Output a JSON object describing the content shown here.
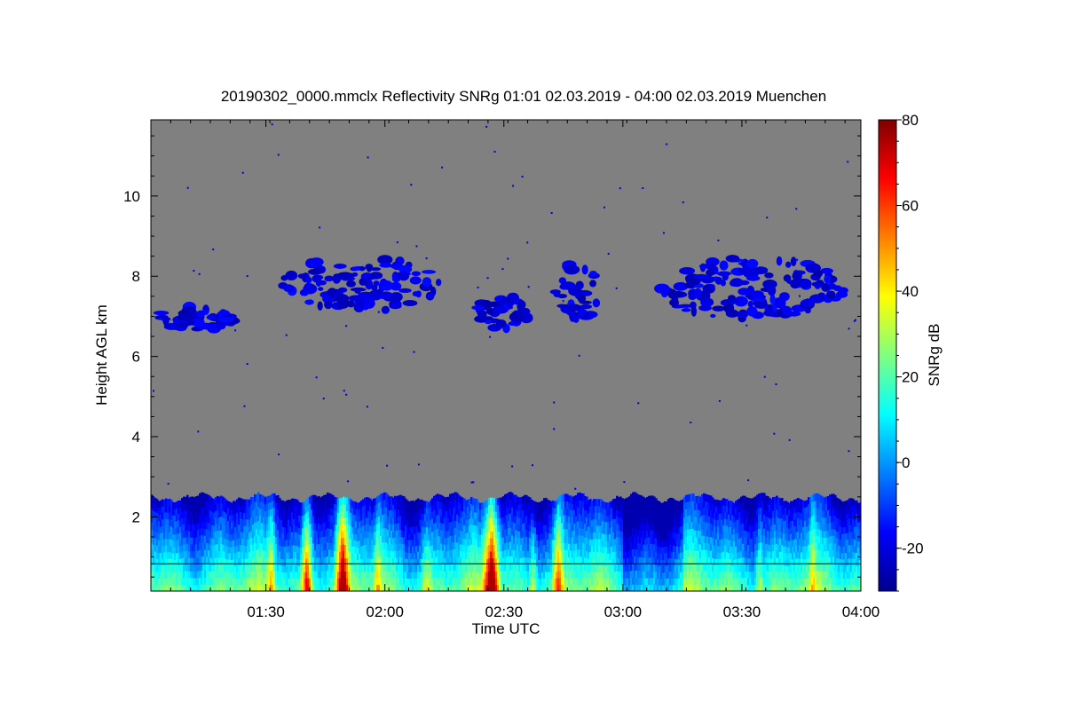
{
  "chart_data": {
    "type": "heatmap",
    "title": "20190302_0000.mmclx Reflectivity SNRg   01:01 02.03.2019 - 04:00 02.03.2019 Muenchen",
    "xlabel": "Time UTC",
    "ylabel": "Height AGL km",
    "colorbar_label": "SNRg dB",
    "x_range": [
      "01:01",
      "04:00"
    ],
    "x_ticks": [
      "01:30",
      "02:00",
      "02:30",
      "03:00",
      "03:30",
      "04:00"
    ],
    "y_range": [
      0.15,
      11.9
    ],
    "y_ticks": [
      2,
      4,
      6,
      8,
      10
    ],
    "colorbar_range": [
      -30,
      80
    ],
    "colorbar_ticks": [
      -20,
      0,
      20,
      40,
      60,
      80
    ],
    "colormap": "jet",
    "background_color": "#808080",
    "reference_line_height_km": 0.83,
    "regions": [
      {
        "name": "boundary layer echo",
        "time_from": "01:01",
        "time_to": "04:00",
        "height_from_km": 0.15,
        "height_to_km": 2.6,
        "snr_db_range": [
          -25,
          75
        ]
      },
      {
        "name": "upper cloud 1",
        "time_from": "01:01",
        "time_to": "01:23",
        "height_from_km": 6.6,
        "height_to_km": 7.3,
        "snr_db_range": [
          -25,
          -15
        ]
      },
      {
        "name": "upper cloud 2",
        "time_from": "01:31",
        "time_to": "02:16",
        "height_from_km": 7.0,
        "height_to_km": 8.6,
        "snr_db_range": [
          -25,
          -15
        ]
      },
      {
        "name": "upper cloud 3",
        "time_from": "02:21",
        "time_to": "02:37",
        "height_from_km": 6.6,
        "height_to_km": 7.6,
        "snr_db_range": [
          -25,
          -15
        ]
      },
      {
        "name": "upper cloud 4",
        "time_from": "02:42",
        "time_to": "02:55",
        "height_from_km": 6.7,
        "height_to_km": 8.5,
        "snr_db_range": [
          -25,
          -15
        ]
      },
      {
        "name": "upper cloud 5",
        "time_from": "03:06",
        "time_to": "03:59",
        "height_from_km": 6.8,
        "height_to_km": 8.6,
        "snr_db_range": [
          -25,
          -15
        ]
      }
    ]
  }
}
